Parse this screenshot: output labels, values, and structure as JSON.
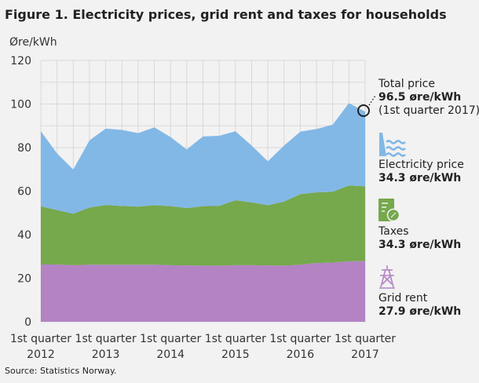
{
  "chart_data": {
    "type": "area",
    "stacked": true,
    "title": "Figure 1. Electricity prices, grid rent and taxes for households",
    "ylabel": "Øre/kWh",
    "ylim": [
      0,
      120
    ],
    "yticks": [
      0,
      20,
      40,
      60,
      80,
      100,
      120
    ],
    "grid": true,
    "x": [
      "2012Q1",
      "2012Q2",
      "2012Q3",
      "2012Q4",
      "2013Q1",
      "2013Q2",
      "2013Q3",
      "2013Q4",
      "2014Q1",
      "2014Q2",
      "2014Q3",
      "2014Q4",
      "2015Q1",
      "2015Q2",
      "2015Q3",
      "2015Q4",
      "2016Q1",
      "2016Q2",
      "2016Q3",
      "2016Q4",
      "2017Q1"
    ],
    "xtick_labels": [
      {
        "line1": "1st quarter",
        "line2": "2012"
      },
      {
        "line1": "1st quarter",
        "line2": "2013"
      },
      {
        "line1": "1st quarter",
        "line2": "2014"
      },
      {
        "line1": "1st quarter",
        "line2": "2015"
      },
      {
        "line1": "1st quarter",
        "line2": "2016"
      },
      {
        "line1": "1st quarter",
        "line2": "2017"
      }
    ],
    "series": [
      {
        "name": "Grid rent",
        "color": "#b383c4",
        "values": [
          26.3,
          26.3,
          26.0,
          26.2,
          26.2,
          26.2,
          26.2,
          26.2,
          26.0,
          25.9,
          25.8,
          25.8,
          26.0,
          26.0,
          25.9,
          25.8,
          26.2,
          27.0,
          27.2,
          27.8,
          27.9
        ]
      },
      {
        "name": "Taxes",
        "color": "#76a84c",
        "values": [
          26.7,
          25.0,
          23.6,
          26.3,
          27.4,
          27.0,
          26.7,
          27.3,
          27.1,
          26.3,
          27.3,
          27.4,
          29.8,
          28.8,
          27.6,
          29.4,
          32.4,
          32.4,
          32.5,
          34.8,
          34.3
        ]
      },
      {
        "name": "Electricity price",
        "color": "#82b8e6",
        "values": [
          34.5,
          26.0,
          20.3,
          30.8,
          35.1,
          34.9,
          33.7,
          35.8,
          31.7,
          26.9,
          32.0,
          32.2,
          31.7,
          26.1,
          20.2,
          25.7,
          28.7,
          29.1,
          30.8,
          37.8,
          34.3
        ]
      }
    ],
    "annotations": {
      "total": {
        "label": "Total price",
        "value": "96.5 øre/kWh",
        "note": "(1st quarter 2017)"
      },
      "electricity": {
        "label": "Electricity price",
        "value": "34.3 øre/kWh"
      },
      "taxes": {
        "label": "Taxes",
        "value": "34.3 øre/kWh"
      },
      "grid": {
        "label": "Grid rent",
        "value": "27.9 øre/kWh"
      }
    },
    "icons": {
      "electricity": "hydropower-icon",
      "taxes": "tax-document-icon",
      "grid": "power-pylon-icon"
    },
    "source": "Source: Statistics Norway."
  }
}
